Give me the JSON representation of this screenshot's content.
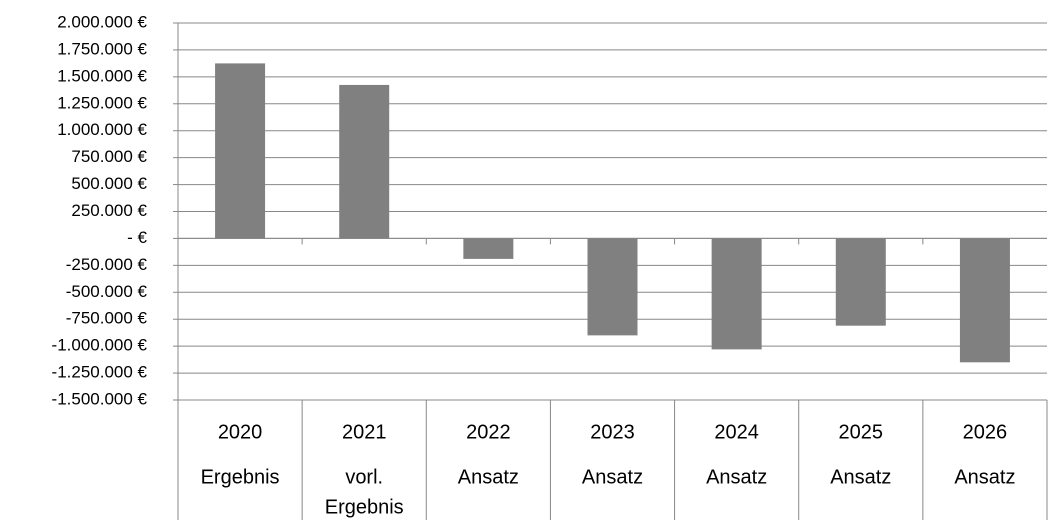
{
  "chart_data": {
    "type": "bar",
    "categories": [
      [
        "2020",
        "Ergebnis"
      ],
      [
        "2021",
        "vorl.",
        "Ergebnis"
      ],
      [
        "2022",
        "Ansatz"
      ],
      [
        "2023",
        "Ansatz"
      ],
      [
        "2024",
        "Ansatz"
      ],
      [
        "2025",
        "Ansatz"
      ],
      [
        "2026",
        "Ansatz"
      ]
    ],
    "values": [
      1625000,
      1425000,
      -190000,
      -900000,
      -1030000,
      -810000,
      -1150000
    ],
    "color": "#808080",
    "ylim": [
      -1500000,
      2000000
    ],
    "yticks": [
      {
        "value": 2000000,
        "label": "2.000.000 €"
      },
      {
        "value": 1750000,
        "label": "1.750.000 €"
      },
      {
        "value": 1500000,
        "label": "1.500.000 €"
      },
      {
        "value": 1250000,
        "label": "1.250.000 €"
      },
      {
        "value": 1000000,
        "label": "1.000.000 €"
      },
      {
        "value": 750000,
        "label": "750.000 €"
      },
      {
        "value": 500000,
        "label": "500.000 €"
      },
      {
        "value": 250000,
        "label": "250.000 €"
      },
      {
        "value": 0,
        "label": "- €"
      },
      {
        "value": -250000,
        "label": "-250.000 €"
      },
      {
        "value": -500000,
        "label": "-500.000 €"
      },
      {
        "value": -750000,
        "label": "-750.000 €"
      },
      {
        "value": -1000000,
        "label": "-1.000.000 €"
      },
      {
        "value": -1250000,
        "label": "-1.250.000 €"
      },
      {
        "value": -1500000,
        "label": "-1.500.000 €"
      }
    ],
    "grid": true
  }
}
